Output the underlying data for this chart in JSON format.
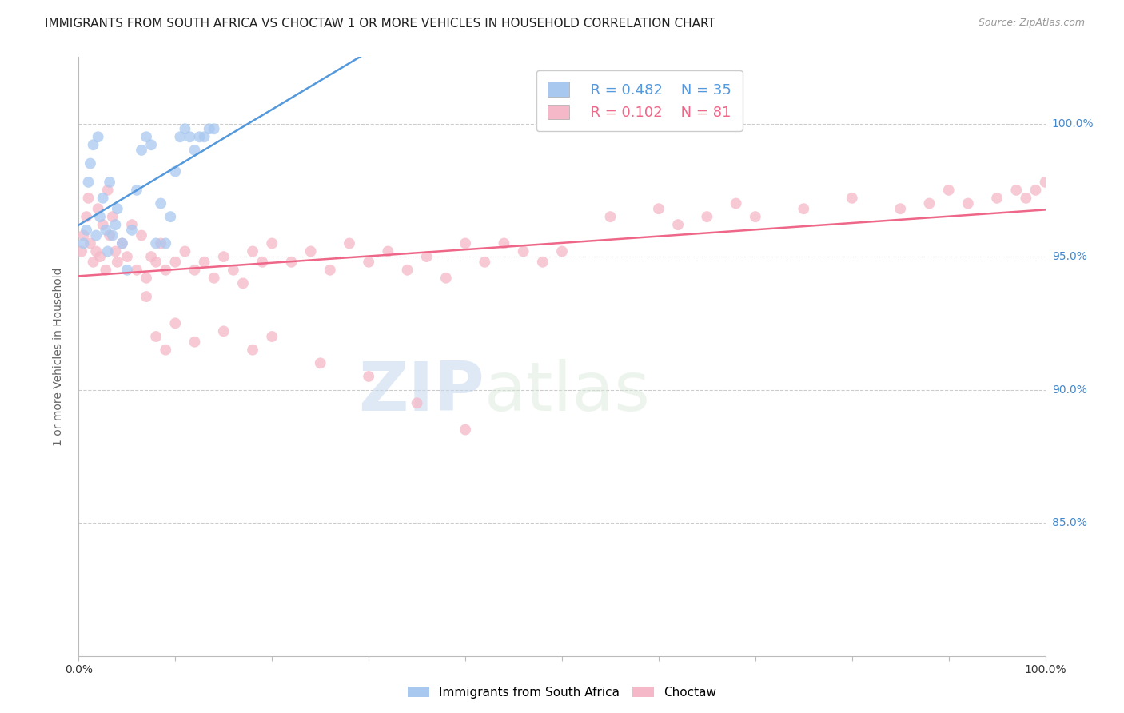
{
  "title": "IMMIGRANTS FROM SOUTH AFRICA VS CHOCTAW 1 OR MORE VEHICLES IN HOUSEHOLD CORRELATION CHART",
  "source": "Source: ZipAtlas.com",
  "ylabel": "1 or more Vehicles in Household",
  "x_min": 0.0,
  "x_max": 100.0,
  "y_min": 80.0,
  "y_max": 102.5,
  "y_ticks": [
    85.0,
    90.0,
    95.0,
    100.0
  ],
  "y_tick_labels": [
    "85.0%",
    "90.0%",
    "95.0%",
    "100.0%"
  ],
  "legend_blue_r": "R = 0.482",
  "legend_blue_n": "N = 35",
  "legend_pink_r": "R = 0.102",
  "legend_pink_n": "N = 81",
  "blue_color": "#a8c8f0",
  "pink_color": "#f5b8c8",
  "blue_line_color": "#5599dd",
  "pink_line_color": "#ee6688",
  "blue_scatter_x": [
    0.5,
    0.8,
    1.0,
    1.2,
    1.5,
    1.8,
    2.0,
    2.2,
    2.5,
    2.8,
    3.0,
    3.2,
    3.5,
    3.8,
    4.0,
    4.5,
    5.0,
    5.5,
    6.0,
    6.5,
    7.0,
    7.5,
    8.0,
    8.5,
    9.0,
    9.5,
    10.0,
    10.5,
    11.0,
    11.5,
    12.0,
    12.5,
    13.0,
    13.5,
    14.0
  ],
  "blue_scatter_y": [
    95.5,
    96.0,
    97.8,
    98.5,
    99.2,
    95.8,
    99.5,
    96.5,
    97.2,
    96.0,
    95.2,
    97.8,
    95.8,
    96.2,
    96.8,
    95.5,
    94.5,
    96.0,
    97.5,
    99.0,
    99.5,
    99.2,
    95.5,
    97.0,
    95.5,
    96.5,
    98.2,
    99.5,
    99.8,
    99.5,
    99.0,
    99.5,
    99.5,
    99.8,
    99.8
  ],
  "pink_scatter_x": [
    0.3,
    0.5,
    0.8,
    1.0,
    1.2,
    1.5,
    1.8,
    2.0,
    2.2,
    2.5,
    2.8,
    3.0,
    3.2,
    3.5,
    3.8,
    4.0,
    4.5,
    5.0,
    5.5,
    6.0,
    6.5,
    7.0,
    7.5,
    8.0,
    8.5,
    9.0,
    10.0,
    11.0,
    12.0,
    13.0,
    14.0,
    15.0,
    16.0,
    17.0,
    18.0,
    19.0,
    20.0,
    22.0,
    24.0,
    26.0,
    28.0,
    30.0,
    32.0,
    34.0,
    36.0,
    38.0,
    40.0,
    42.0,
    44.0,
    46.0,
    48.0,
    50.0,
    55.0,
    60.0,
    62.0,
    65.0,
    68.0,
    70.0,
    75.0,
    80.0,
    85.0,
    88.0,
    90.0,
    92.0,
    95.0,
    97.0,
    98.0,
    99.0,
    100.0,
    7.0,
    8.0,
    9.0,
    10.0,
    12.0,
    15.0,
    18.0,
    20.0,
    25.0,
    30.0,
    35.0,
    40.0
  ],
  "pink_scatter_y": [
    95.2,
    95.8,
    96.5,
    97.2,
    95.5,
    94.8,
    95.2,
    96.8,
    95.0,
    96.2,
    94.5,
    97.5,
    95.8,
    96.5,
    95.2,
    94.8,
    95.5,
    95.0,
    96.2,
    94.5,
    95.8,
    94.2,
    95.0,
    94.8,
    95.5,
    94.5,
    94.8,
    95.2,
    94.5,
    94.8,
    94.2,
    95.0,
    94.5,
    94.0,
    95.2,
    94.8,
    95.5,
    94.8,
    95.2,
    94.5,
    95.5,
    94.8,
    95.2,
    94.5,
    95.0,
    94.2,
    95.5,
    94.8,
    95.5,
    95.2,
    94.8,
    95.2,
    96.5,
    96.8,
    96.2,
    96.5,
    97.0,
    96.5,
    96.8,
    97.2,
    96.8,
    97.0,
    97.5,
    97.0,
    97.2,
    97.5,
    97.2,
    97.5,
    97.8,
    93.5,
    92.0,
    91.5,
    92.5,
    91.8,
    92.2,
    91.5,
    92.0,
    91.0,
    90.5,
    89.5,
    88.5
  ],
  "watermark_zip": "ZIP",
  "watermark_atlas": "atlas",
  "background_color": "#ffffff",
  "grid_color": "#cccccc",
  "title_fontsize": 11,
  "axis_label_color": "#666666",
  "tick_label_color_y": "#4488cc",
  "tick_label_color_x": "#333333"
}
